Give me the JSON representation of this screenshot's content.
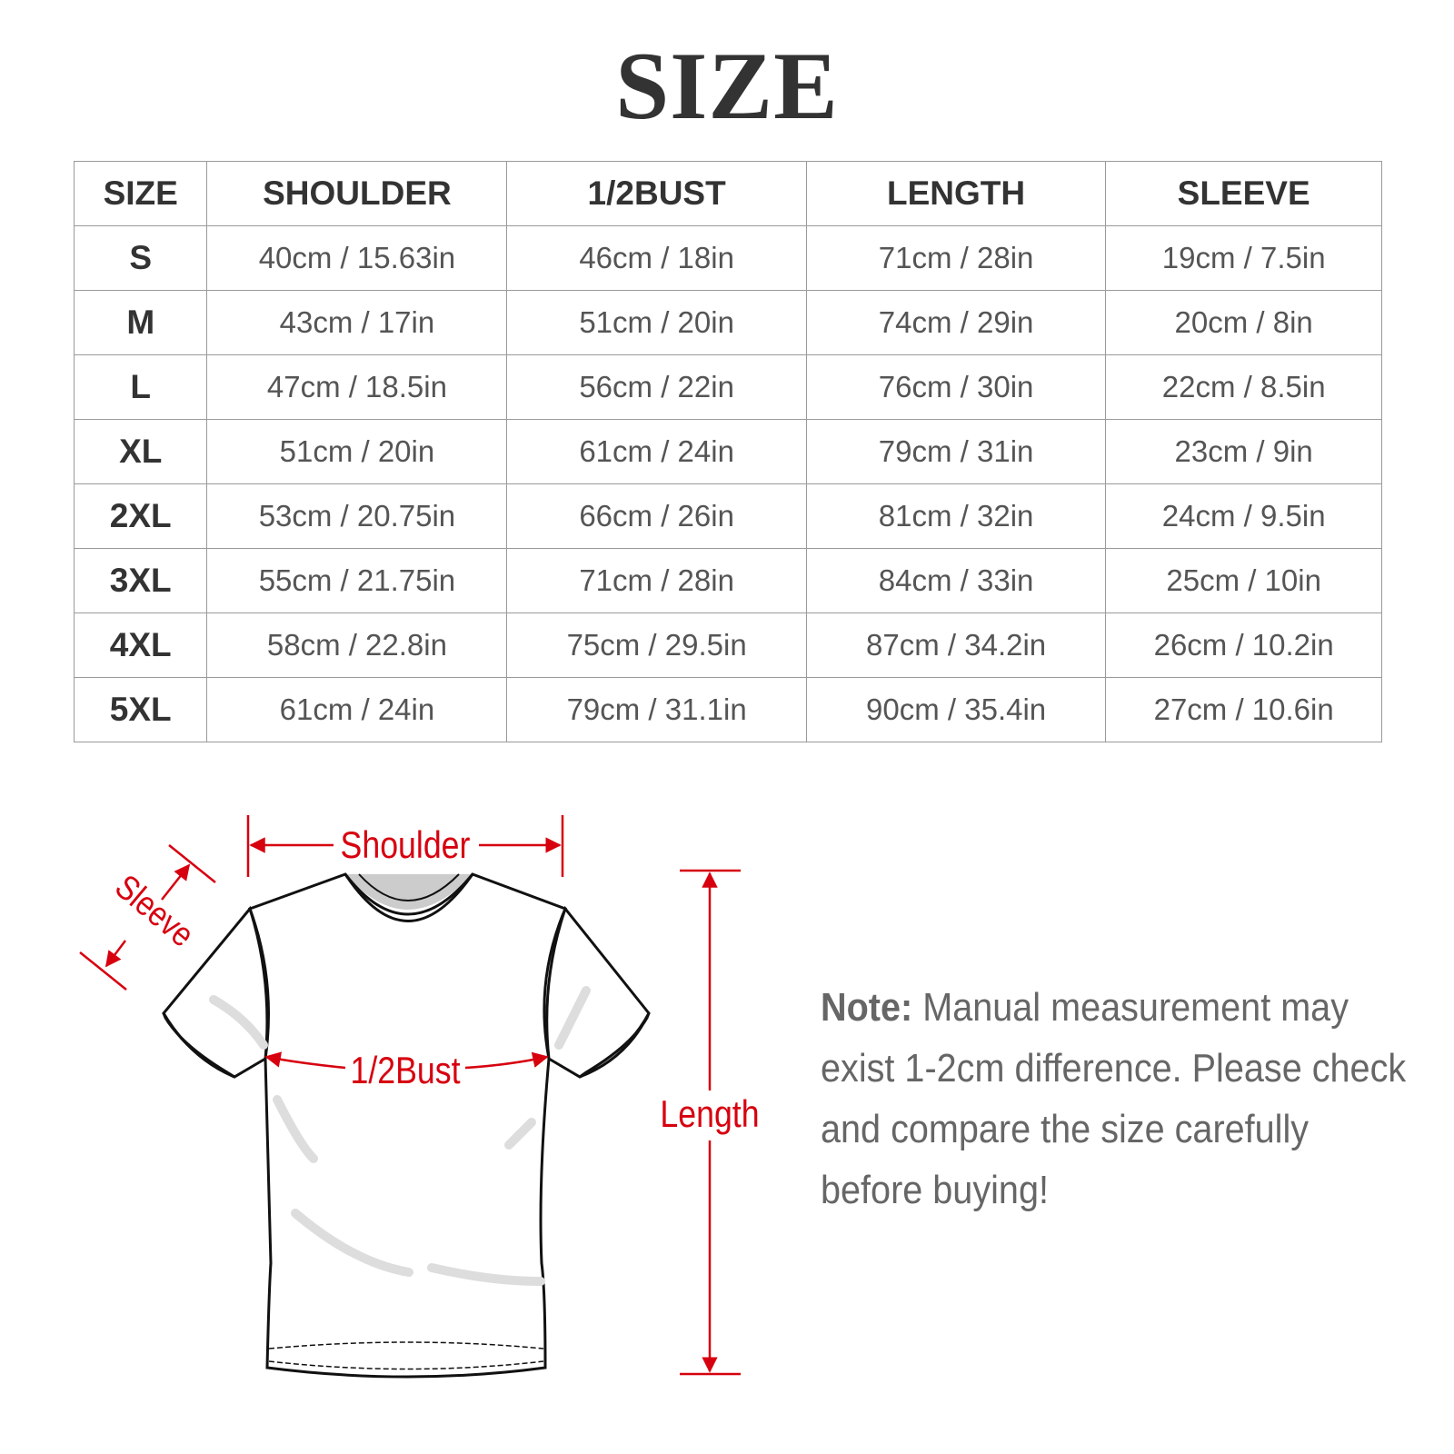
{
  "title": "SIZE",
  "table": {
    "headers": [
      "SIZE",
      "SHOULDER",
      "1/2BUST",
      "LENGTH",
      "SLEEVE"
    ],
    "rows": [
      [
        "S",
        "40cm / 15.63in",
        "46cm / 18in",
        "71cm / 28in",
        "19cm / 7.5in"
      ],
      [
        "M",
        "43cm / 17in",
        "51cm / 20in",
        "74cm / 29in",
        "20cm / 8in"
      ],
      [
        "L",
        "47cm / 18.5in",
        "56cm / 22in",
        "76cm / 30in",
        "22cm / 8.5in"
      ],
      [
        "XL",
        "51cm / 20in",
        "61cm / 24in",
        "79cm / 31in",
        "23cm / 9in"
      ],
      [
        "2XL",
        "53cm / 20.75in",
        "66cm / 26in",
        "81cm / 32in",
        "24cm / 9.5in"
      ],
      [
        "3XL",
        "55cm / 21.75in",
        "71cm / 28in",
        "84cm / 33in",
        "25cm / 10in"
      ],
      [
        "4XL",
        "58cm / 22.8in",
        "75cm / 29.5in",
        "87cm / 34.2in",
        "26cm / 10.2in"
      ],
      [
        "5XL",
        "61cm / 24in",
        "79cm / 31.1in",
        "90cm / 35.4in",
        "27cm / 10.6in"
      ]
    ]
  },
  "diagram": {
    "labels": {
      "shoulder": "Shoulder",
      "sleeve": "Sleeve",
      "bust": "1/2Bust",
      "length": "Length"
    },
    "accent_color": "#d7000f"
  },
  "note": {
    "label": "Note:",
    "text": "Manual measurement may exist 1-2cm difference. Please check and compare the size carefully before buying!"
  }
}
